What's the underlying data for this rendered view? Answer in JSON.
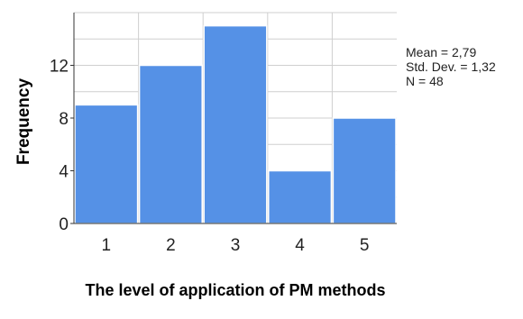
{
  "chart_data": {
    "type": "bar",
    "categories": [
      "1",
      "2",
      "3",
      "4",
      "5"
    ],
    "values": [
      9,
      12,
      15,
      4,
      8
    ],
    "title": "",
    "xlabel": "The level of application of  PM methods",
    "ylabel": "Frequency",
    "yticks": [
      "0",
      "4",
      "8",
      "12"
    ],
    "ylim": [
      0,
      16
    ],
    "grid": true,
    "bar_color": "#5591e6",
    "stats": [
      "Mean = 2,79",
      "Std. Dev. = 1,32",
      "N = 48"
    ]
  }
}
